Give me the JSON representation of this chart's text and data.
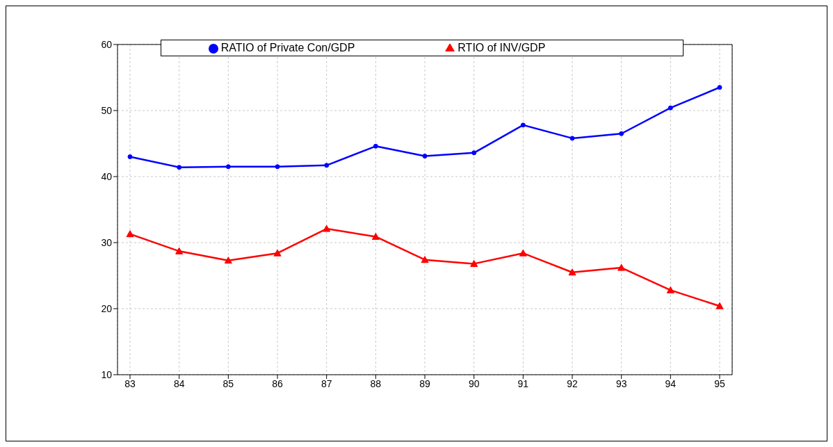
{
  "chart_data": {
    "type": "line",
    "categories": [
      "83",
      "84",
      "85",
      "86",
      "87",
      "88",
      "89",
      "90",
      "91",
      "92",
      "93",
      "94",
      "95"
    ],
    "series": [
      {
        "name": "RATIO of Private Con/GDP",
        "color": "#0000ff",
        "marker": "circle",
        "values": [
          43.0,
          41.4,
          41.5,
          41.5,
          41.7,
          44.6,
          43.1,
          43.6,
          47.8,
          45.8,
          46.5,
          50.4,
          53.5
        ]
      },
      {
        "name": "RTIO of INV/GDP",
        "color": "#ff0000",
        "marker": "triangle",
        "values": [
          31.3,
          28.7,
          27.3,
          28.4,
          32.1,
          30.9,
          27.4,
          26.8,
          28.4,
          25.5,
          26.2,
          22.8,
          20.4
        ]
      }
    ],
    "ylim": [
      10,
      60
    ],
    "yticks": [
      10,
      20,
      30,
      40,
      50,
      60
    ],
    "grid": true,
    "legend": "top",
    "line_style": "solid"
  }
}
